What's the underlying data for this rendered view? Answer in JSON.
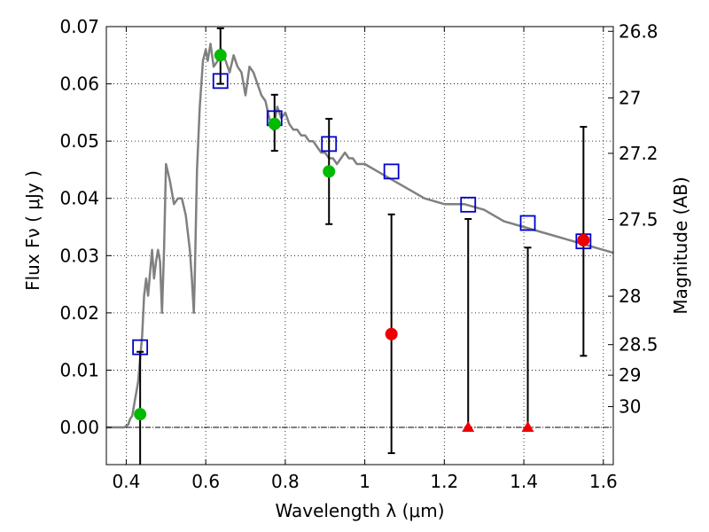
{
  "chart_data": {
    "type": "scatter",
    "xlabel": "Wavelength  λ (μm)",
    "ylabel": "Flux  Fν  ( μJy )",
    "ylabel_right": "Magnitude (AB)",
    "xlim": [
      0.35,
      1.625
    ],
    "ylim": [
      -0.0065,
      0.07
    ],
    "x_ticks": [
      0.4,
      0.6,
      0.8,
      1.0,
      1.2,
      1.4,
      1.6
    ],
    "x_tick_labels": [
      "0.4",
      "0.6",
      "0.8",
      "1",
      "1.2",
      "1.4",
      "1.6"
    ],
    "y_ticks": [
      0.0,
      0.01,
      0.02,
      0.03,
      0.04,
      0.05,
      0.06,
      0.07
    ],
    "y_tick_labels": [
      "0.00",
      "0.01",
      "0.02",
      "0.03",
      "0.04",
      "0.05",
      "0.06",
      "0.07"
    ],
    "magnitude_ticks": [
      26.8,
      27,
      27.2,
      27.5,
      28,
      28.5,
      29,
      30
    ],
    "magnitude_tick_labels": [
      "26.8",
      "27",
      "27.2",
      "27.5",
      "28",
      "28.5",
      "29",
      "30"
    ],
    "grid": true,
    "colors": {
      "model_line": "#808080",
      "detection": "#00bb00",
      "low_significance": "#ee0000",
      "model_flux": "#0000cc",
      "error_bar": "#000000",
      "zero_line": "#000000"
    },
    "series": [
      {
        "type": "line",
        "role": "model-spectrum",
        "points": [
          [
            0.35,
            0
          ],
          [
            0.395,
            0
          ],
          [
            0.405,
            0.0005
          ],
          [
            0.41,
            0.0015
          ],
          [
            0.415,
            0.002
          ],
          [
            0.42,
            0.004
          ],
          [
            0.43,
            0.008
          ],
          [
            0.435,
            0.012
          ],
          [
            0.44,
            0.016
          ],
          [
            0.445,
            0.023
          ],
          [
            0.45,
            0.026
          ],
          [
            0.455,
            0.023
          ],
          [
            0.46,
            0.027
          ],
          [
            0.465,
            0.031
          ],
          [
            0.47,
            0.026
          ],
          [
            0.475,
            0.029
          ],
          [
            0.48,
            0.031
          ],
          [
            0.485,
            0.029
          ],
          [
            0.49,
            0.02
          ],
          [
            0.495,
            0.031
          ],
          [
            0.5,
            0.046
          ],
          [
            0.51,
            0.043
          ],
          [
            0.52,
            0.039
          ],
          [
            0.53,
            0.04
          ],
          [
            0.54,
            0.04
          ],
          [
            0.55,
            0.037
          ],
          [
            0.56,
            0.031
          ],
          [
            0.565,
            0.026
          ],
          [
            0.57,
            0.02
          ],
          [
            0.572,
            0.025
          ],
          [
            0.578,
            0.045
          ],
          [
            0.585,
            0.056
          ],
          [
            0.593,
            0.064
          ],
          [
            0.6,
            0.066
          ],
          [
            0.605,
            0.064
          ],
          [
            0.612,
            0.067
          ],
          [
            0.62,
            0.063
          ],
          [
            0.63,
            0.064
          ],
          [
            0.64,
            0.066
          ],
          [
            0.65,
            0.064
          ],
          [
            0.66,
            0.062
          ],
          [
            0.67,
            0.065
          ],
          [
            0.68,
            0.063
          ],
          [
            0.69,
            0.062
          ],
          [
            0.7,
            0.058
          ],
          [
            0.71,
            0.063
          ],
          [
            0.72,
            0.062
          ],
          [
            0.73,
            0.06
          ],
          [
            0.74,
            0.058
          ],
          [
            0.75,
            0.057
          ],
          [
            0.76,
            0.054
          ],
          [
            0.77,
            0.052
          ],
          [
            0.78,
            0.056
          ],
          [
            0.79,
            0.054
          ],
          [
            0.8,
            0.055
          ],
          [
            0.81,
            0.053
          ],
          [
            0.82,
            0.052
          ],
          [
            0.83,
            0.052
          ],
          [
            0.84,
            0.051
          ],
          [
            0.85,
            0.051
          ],
          [
            0.86,
            0.05
          ],
          [
            0.87,
            0.05
          ],
          [
            0.88,
            0.049
          ],
          [
            0.89,
            0.048
          ],
          [
            0.9,
            0.048
          ],
          [
            0.91,
            0.047
          ],
          [
            0.92,
            0.047
          ],
          [
            0.93,
            0.046
          ],
          [
            0.94,
            0.047
          ],
          [
            0.95,
            0.048
          ],
          [
            0.96,
            0.047
          ],
          [
            0.97,
            0.047
          ],
          [
            0.98,
            0.046
          ],
          [
            0.99,
            0.046
          ],
          [
            1.0,
            0.046
          ],
          [
            1.05,
            0.044
          ],
          [
            1.1,
            0.042
          ],
          [
            1.15,
            0.04
          ],
          [
            1.2,
            0.039
          ],
          [
            1.25,
            0.039
          ],
          [
            1.3,
            0.038
          ],
          [
            1.35,
            0.036
          ],
          [
            1.4,
            0.035
          ],
          [
            1.45,
            0.034
          ],
          [
            1.5,
            0.033
          ],
          [
            1.55,
            0.032
          ],
          [
            1.625,
            0.0305
          ]
        ]
      },
      {
        "type": "scatter",
        "role": "model-flux",
        "marker": "open-square",
        "points": [
          [
            0.435,
            0.014
          ],
          [
            0.637,
            0.0605
          ],
          [
            0.773,
            0.054
          ],
          [
            0.91,
            0.0495
          ],
          [
            1.067,
            0.0447
          ],
          [
            1.26,
            0.0389
          ],
          [
            1.41,
            0.0357
          ],
          [
            1.55,
            0.0325
          ]
        ]
      },
      {
        "type": "scatter",
        "role": "detection",
        "marker": "circle",
        "points": [
          [
            0.435,
            0.0023
          ],
          [
            0.637,
            0.065
          ],
          [
            0.773,
            0.053
          ],
          [
            0.91,
            0.0447
          ]
        ]
      },
      {
        "type": "scatter",
        "role": "low-significance",
        "marker": "circle",
        "points": [
          [
            1.067,
            0.0163
          ],
          [
            1.55,
            0.0327
          ]
        ]
      },
      {
        "type": "scatter",
        "role": "upper-limit",
        "marker": "triangle",
        "points": [
          [
            1.26,
            0.0
          ],
          [
            1.41,
            0.0
          ]
        ]
      }
    ],
    "error_bars": [
      {
        "x": 0.435,
        "low": -0.0065,
        "high": 0.0132
      },
      {
        "x": 0.637,
        "low": 0.06,
        "high": 0.0697
      },
      {
        "x": 0.773,
        "low": 0.0483,
        "high": 0.0581
      },
      {
        "x": 0.91,
        "low": 0.0355,
        "high": 0.0539
      },
      {
        "x": 1.067,
        "low": -0.0045,
        "high": 0.0372
      },
      {
        "x": 1.26,
        "low": 0.0,
        "high": 0.0364
      },
      {
        "x": 1.41,
        "low": 0.0,
        "high": 0.0314
      },
      {
        "x": 1.55,
        "low": 0.0125,
        "high": 0.0525
      }
    ]
  }
}
